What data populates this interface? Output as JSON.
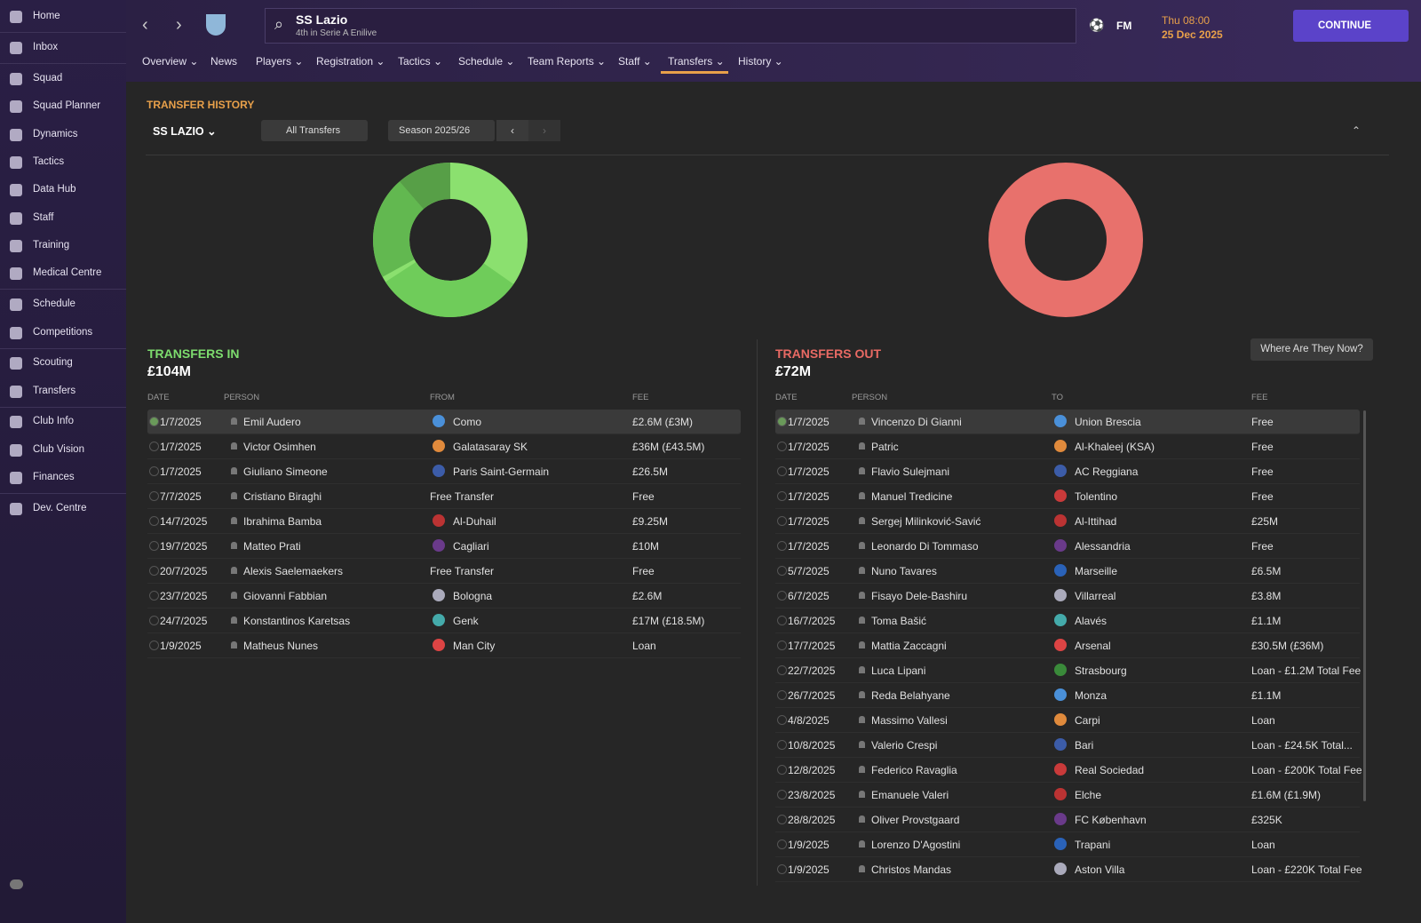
{
  "sidebar": {
    "items": [
      "Home",
      "Inbox",
      "Squad",
      "Squad Planner",
      "Dynamics",
      "Tactics",
      "Data Hub",
      "Staff",
      "Training",
      "Medical Centre",
      "Schedule",
      "Competitions",
      "Scouting",
      "Transfers",
      "Club Info",
      "Club Vision",
      "Finances",
      "Dev. Centre"
    ]
  },
  "header": {
    "club": "SS Lazio",
    "subtitle": "4th in Serie A Enilive",
    "logo": "FM",
    "time": "Thu 08:00",
    "date": "25 Dec 2025",
    "continue": "CONTINUE"
  },
  "nav": {
    "tabs": [
      "Overview",
      "News",
      "Players",
      "Registration",
      "Tactics",
      "Schedule",
      "Team Reports",
      "Staff",
      "Transfers",
      "History"
    ],
    "active": "Transfers"
  },
  "toolbar": {
    "title": "TRANSFER HISTORY",
    "club": "SS LAZIO",
    "filter": "All Transfers",
    "season": "Season 2025/26"
  },
  "transfers_in": {
    "title": "TRANSFERS IN",
    "total": "£104M",
    "columns": [
      "DATE",
      "PERSON",
      "FROM",
      "FEE"
    ],
    "rows": [
      [
        "1/7/2025",
        "Emil Audero",
        "Como",
        "£2.6M (£3M)"
      ],
      [
        "1/7/2025",
        "Victor Osimhen",
        "Galatasaray SK",
        "£36M (£43.5M)"
      ],
      [
        "1/7/2025",
        "Giuliano Simeone",
        "Paris Saint-Germain",
        "£26.5M"
      ],
      [
        "7/7/2025",
        "Cristiano Biraghi",
        "Free Transfer",
        "Free"
      ],
      [
        "14/7/2025",
        "Ibrahima Bamba",
        "Al-Duhail",
        "£9.25M"
      ],
      [
        "19/7/2025",
        "Matteo Prati",
        "Cagliari",
        "£10M"
      ],
      [
        "20/7/2025",
        "Alexis Saelemaekers",
        "Free Transfer",
        "Free"
      ],
      [
        "23/7/2025",
        "Giovanni Fabbian",
        "Bologna",
        "£2.6M"
      ],
      [
        "24/7/2025",
        "Konstantinos Karetsas",
        "Genk",
        "£17M (£18.5M)"
      ],
      [
        "1/9/2025",
        "Matheus Nunes",
        "Man City",
        "Loan"
      ]
    ]
  },
  "transfers_out": {
    "title": "TRANSFERS OUT",
    "total": "£72M",
    "button": "Where Are They Now?",
    "columns": [
      "DATE",
      "PERSON",
      "TO",
      "FEE"
    ],
    "rows": [
      [
        "1/7/2025",
        "Vincenzo Di Gianni",
        "Union Brescia",
        "Free"
      ],
      [
        "1/7/2025",
        "Patric",
        "Al-Khaleej (KSA)",
        "Free"
      ],
      [
        "1/7/2025",
        "Flavio Sulejmani",
        "AC Reggiana",
        "Free"
      ],
      [
        "1/7/2025",
        "Manuel Tredicine",
        "Tolentino",
        "Free"
      ],
      [
        "1/7/2025",
        "Sergej Milinković-Savić",
        "Al-Ittihad",
        "£25M"
      ],
      [
        "1/7/2025",
        "Leonardo Di Tommaso",
        "Alessandria",
        "Free"
      ],
      [
        "5/7/2025",
        "Nuno Tavares",
        "Marseille",
        "£6.5M"
      ],
      [
        "6/7/2025",
        "Fisayo Dele-Bashiru",
        "Villarreal",
        "£3.8M"
      ],
      [
        "16/7/2025",
        "Toma Bašić",
        "Alavés",
        "£1.1M"
      ],
      [
        "17/7/2025",
        "Mattia Zaccagni",
        "Arsenal",
        "£30.5M (£36M)"
      ],
      [
        "22/7/2025",
        "Luca Lipani",
        "Strasbourg",
        "Loan - £1.2M Total Fee"
      ],
      [
        "26/7/2025",
        "Reda Belahyane",
        "Monza",
        "£1.1M"
      ],
      [
        "4/8/2025",
        "Massimo Vallesi",
        "Carpi",
        "Loan"
      ],
      [
        "10/8/2025",
        "Valerio Crespi",
        "Bari",
        "Loan - £24.5K Total..."
      ],
      [
        "12/8/2025",
        "Federico Ravaglia",
        "Real Sociedad",
        "Loan - £200K Total Fee"
      ],
      [
        "23/8/2025",
        "Emanuele Valeri",
        "Elche",
        "£1.6M (£1.9M)"
      ],
      [
        "28/8/2025",
        "Oliver Provstgaard",
        "FC København",
        "£325K"
      ],
      [
        "1/9/2025",
        "Lorenzo D'Agostini",
        "Trapani",
        "Loan"
      ],
      [
        "1/9/2025",
        "Christos Mandas",
        "Aston Villa",
        "Loan - £220K Total Fee"
      ]
    ]
  }
}
